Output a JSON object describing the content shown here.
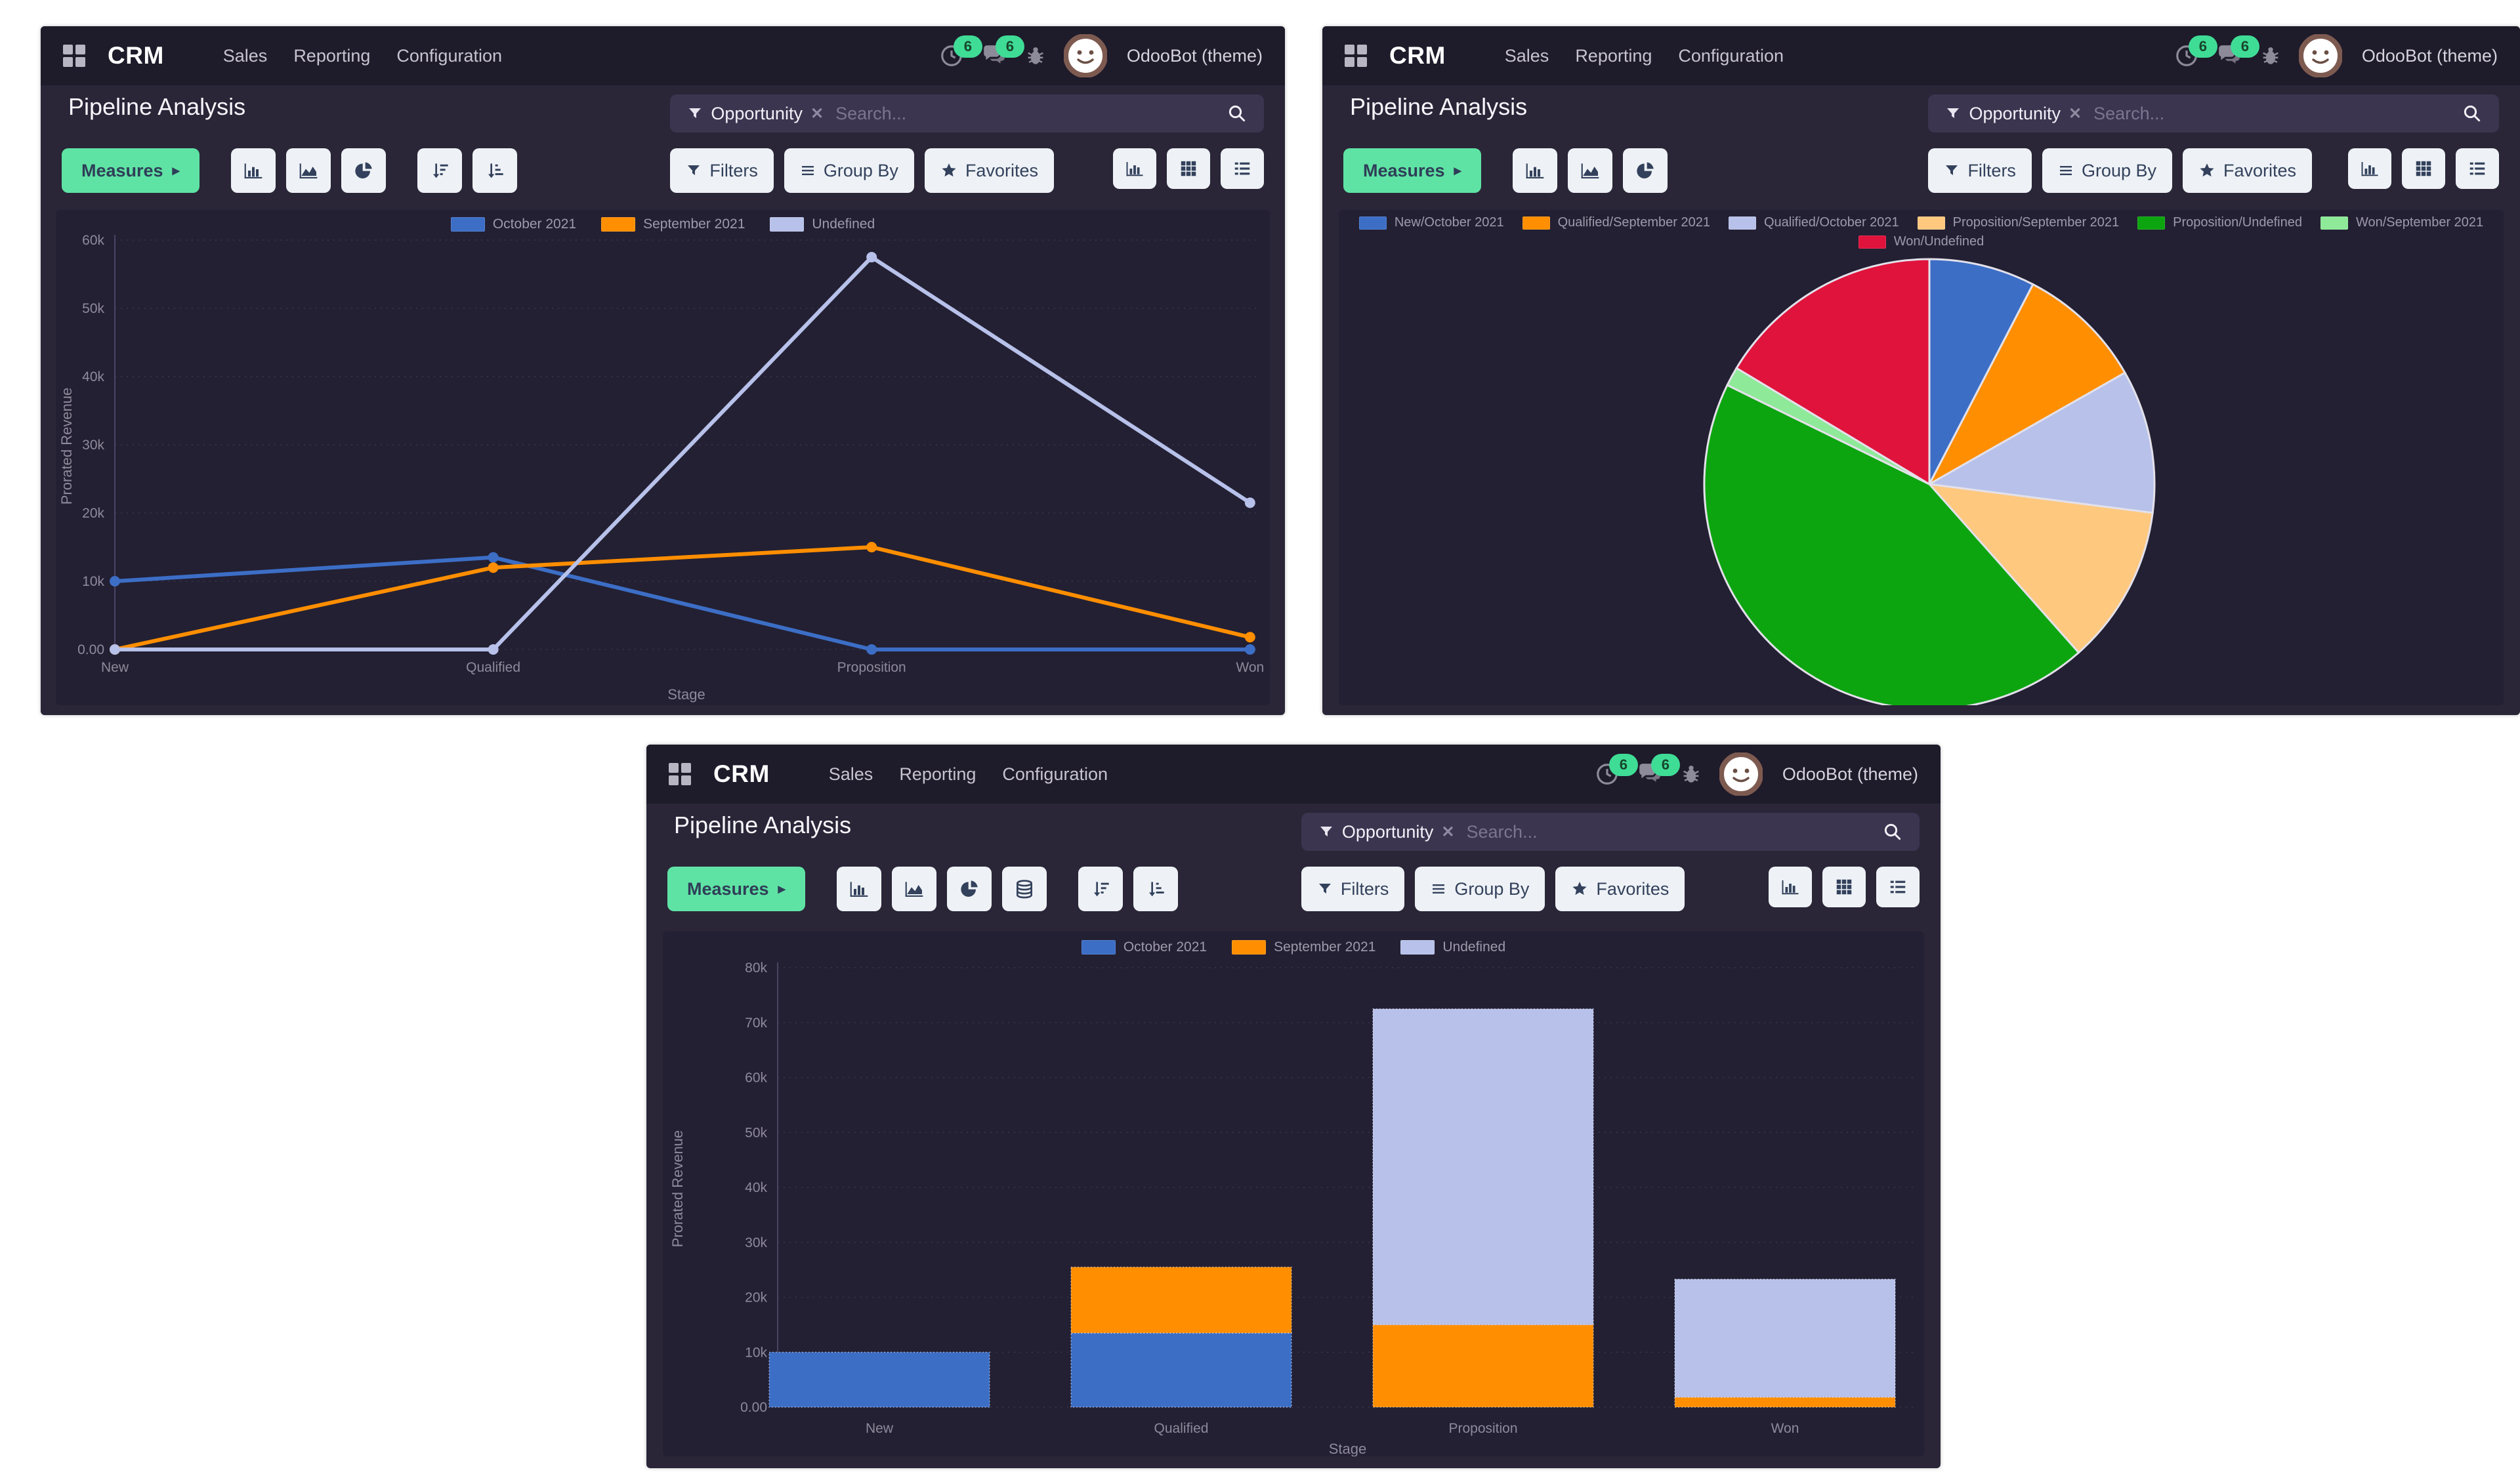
{
  "app": {
    "name": "CRM",
    "menus": [
      "Sales",
      "Reporting",
      "Configuration"
    ],
    "activity_badge": "6",
    "message_badge": "6",
    "user": "OdooBot (theme)"
  },
  "panel": {
    "title": "Pipeline Analysis",
    "measures_label": "Measures",
    "filters_label": "Filters",
    "group_by_label": "Group By",
    "favorites_label": "Favorites",
    "search": {
      "facet": "Opportunity",
      "remove": "✕",
      "placeholder": "Search..."
    }
  },
  "icons": {
    "apps": "grid-2x2",
    "activity": "clock",
    "messages": "chat-bubbles",
    "debug": "bug",
    "avatar": "odoobot-smiley",
    "filter": "funnel",
    "group_by": "triple-lines",
    "favorites": "star",
    "search": "magnifier",
    "views": [
      "bar-chart",
      "pivot-grid",
      "list"
    ],
    "chart_type_buttons": [
      "bar-chart",
      "area-chart",
      "pie-chart"
    ],
    "stacked_toggle": "database-stack",
    "sort_buttons": [
      "sort-descending",
      "sort-ascending"
    ]
  },
  "colors": {
    "page": "#ffffff",
    "nav": "#1e1b2a",
    "body": "#2a2638",
    "chart_bg": "#232033",
    "accent_green": "#5fe3a4",
    "badge_green": "#3fdc96",
    "button_ink": "#33415c",
    "blue": "#3c6ec6",
    "orange": "#ff8e00",
    "lavender": "#b7c1ea",
    "peach": "#ffc87f",
    "green": "#0ca50f",
    "light_green": "#8ee998",
    "red": "#e0133c",
    "muted_text": "#9e9aab",
    "tick_text": "#8e8a9b"
  },
  "chart_data": [
    {
      "type": "line",
      "categories": [
        "New",
        "Qualified",
        "Proposition",
        "Won"
      ],
      "series": [
        {
          "name": "October 2021",
          "color": "#3c6ec6",
          "values": [
            10000,
            13500,
            0,
            0
          ]
        },
        {
          "name": "September 2021",
          "color": "#ff8e00",
          "values": [
            0,
            12000,
            15000,
            1800
          ]
        },
        {
          "name": "Undefined",
          "color": "#b7c1ea",
          "values": [
            0,
            0,
            57500,
            21500
          ]
        }
      ],
      "xlabel": "Stage",
      "ylabel": "Prorated Revenue",
      "ylim": [
        0,
        60000
      ],
      "ytick_step": 10000,
      "ytick_zero_label": "0.00",
      "grid": true,
      "legend_position": "top"
    },
    {
      "type": "pie",
      "slices": [
        {
          "label": "New/October 2021",
          "value": 10000,
          "color": "#3c6ec6"
        },
        {
          "label": "Qualified/September 2021",
          "value": 12000,
          "color": "#ff8e00"
        },
        {
          "label": "Qualified/October 2021",
          "value": 13500,
          "color": "#b7c1ea"
        },
        {
          "label": "Proposition/September 2021",
          "value": 15000,
          "color": "#ffc87f"
        },
        {
          "label": "Proposition/Undefined",
          "value": 57500,
          "color": "#0ca50f"
        },
        {
          "label": "Won/September 2021",
          "value": 1800,
          "color": "#8ee998"
        },
        {
          "label": "Won/Undefined",
          "value": 21500,
          "color": "#e0133c"
        }
      ],
      "start_angle_deg": 0,
      "clockwise": true,
      "legend_position": "top",
      "legend_rows": [
        6,
        1
      ]
    },
    {
      "type": "bar",
      "stacked": true,
      "categories": [
        "New",
        "Qualified",
        "Proposition",
        "Won"
      ],
      "series": [
        {
          "name": "October 2021",
          "color": "#3c6ec6",
          "values": [
            10000,
            13500,
            0,
            0
          ]
        },
        {
          "name": "September 2021",
          "color": "#ff8e00",
          "values": [
            0,
            12000,
            15000,
            1800
          ]
        },
        {
          "name": "Undefined",
          "color": "#b7c1ea",
          "values": [
            0,
            0,
            57500,
            21500
          ]
        }
      ],
      "xlabel": "Stage",
      "ylabel": "Prorated Revenue",
      "ylim": [
        0,
        80000
      ],
      "ytick_step": 10000,
      "ytick_zero_label": "0.00",
      "grid": true,
      "legend_position": "top"
    }
  ],
  "windows": [
    {
      "id": "line",
      "chart_index": 0,
      "view": "line chart"
    },
    {
      "id": "pie",
      "chart_index": 1,
      "view": "pie chart"
    },
    {
      "id": "bar",
      "chart_index": 2,
      "view": "stacked bar chart"
    }
  ]
}
